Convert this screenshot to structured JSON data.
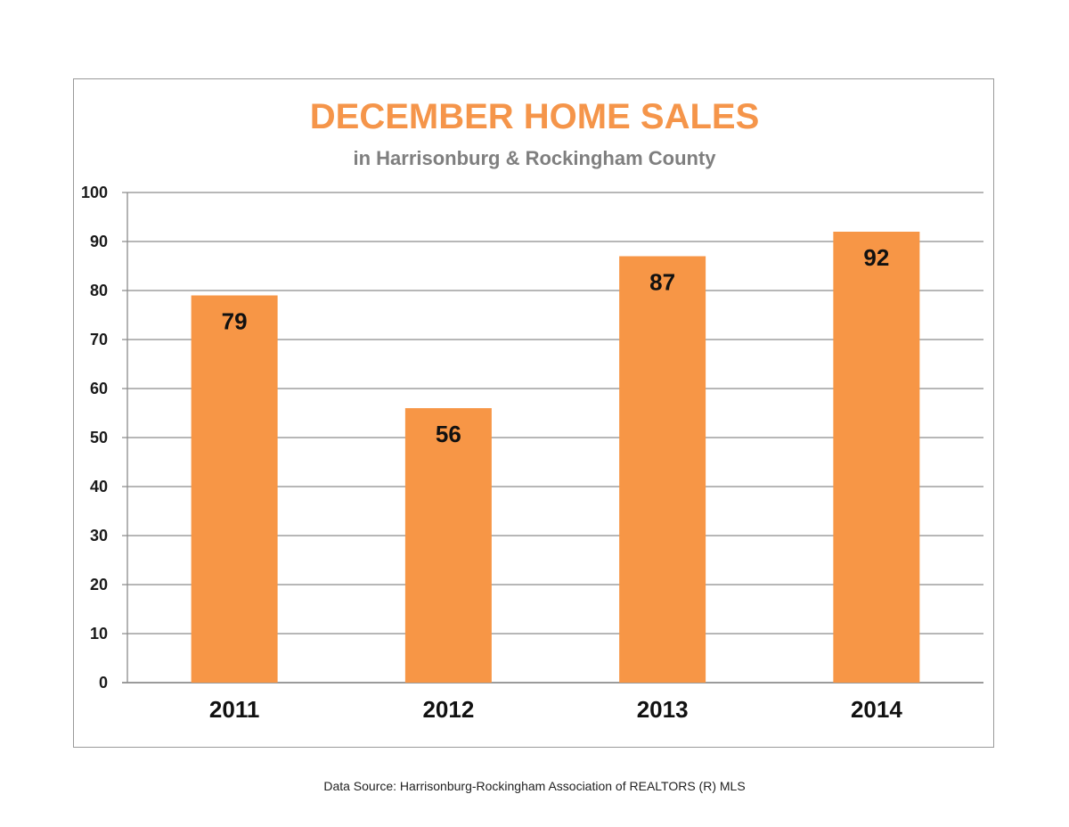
{
  "chart_data": {
    "type": "bar",
    "title": "DECEMBER HOME SALES",
    "subtitle": "in Harrisonburg & Rockingham County",
    "categories": [
      "2011",
      "2012",
      "2013",
      "2014"
    ],
    "values": [
      79,
      56,
      87,
      92
    ],
    "data_labels": [
      "79",
      "56",
      "87",
      "92"
    ],
    "ylim": [
      0,
      100
    ],
    "yticks": [
      0,
      10,
      20,
      30,
      40,
      50,
      60,
      70,
      80,
      90,
      100
    ],
    "xlabel": "",
    "ylabel": "",
    "grid": true,
    "legend": "none",
    "bar_color": "#f79646",
    "title_color": "#f5954a",
    "subtitle_color": "#7f7f7f"
  },
  "footer": {
    "source": "Data Source: Harrisonburg-Rockingham Association of REALTORS (R) MLS"
  }
}
